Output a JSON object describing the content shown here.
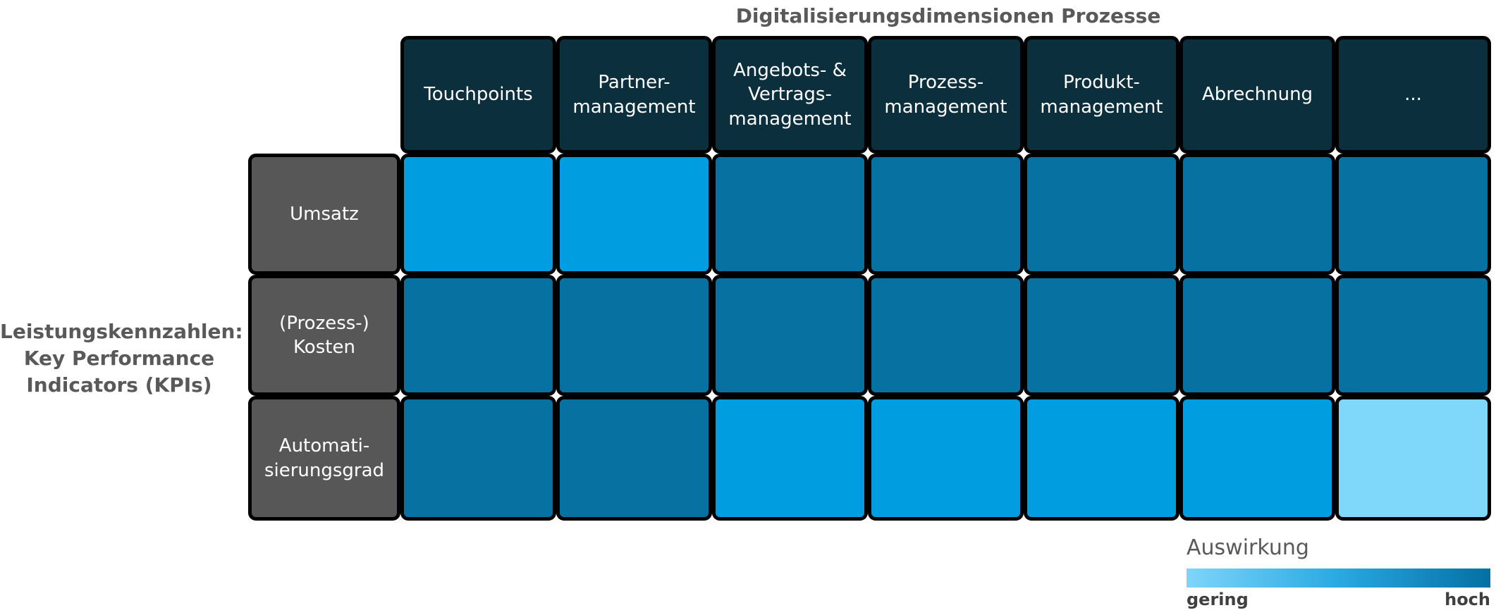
{
  "title": "Digitalisierungsdimensionen Prozesse",
  "y_axis_label": "Leistungskennzahlen:\nKey Performance\nIndicators (KPIs)",
  "legend": {
    "title": "Auswirkung",
    "min_label": "gering",
    "max_label": "hoch"
  },
  "colors": {
    "title_text": "#595959",
    "header_bg": "#0C2F3E",
    "row_header_bg": "#575757",
    "box_border": "#000000",
    "cell_text": "#FFFFFF",
    "legend_label_text": "#3F3F3F",
    "impact_scale": {
      "gering": "#7FD7F9",
      "mittel": "#009EE0",
      "hoch": "#0771A1"
    },
    "legend_gradient": [
      "#7ED5FA",
      "#29A9E2",
      "#0470A4"
    ]
  },
  "chart_data": {
    "type": "heatmap",
    "title": "Digitalisierungsdimensionen Prozesse",
    "ylabel": "Leistungskennzahlen: Key Performance Indicators (KPIs)",
    "x_categories": [
      "Touchpoints",
      "Partner-\nmanagement",
      "Angebots- &\nVertrags-\nmanagement",
      "Prozess-\nmanagement",
      "Produkt-\nmanagement",
      "Abrechnung",
      "..."
    ],
    "y_categories": [
      "Umsatz",
      "(Prozess-)\nKosten",
      "Automati-\nsierungsgrad"
    ],
    "values": [
      [
        "mittel",
        "mittel",
        "hoch",
        "hoch",
        "hoch",
        "hoch",
        "hoch"
      ],
      [
        "hoch",
        "hoch",
        "hoch",
        "hoch",
        "hoch",
        "hoch",
        "hoch"
      ],
      [
        "hoch",
        "hoch",
        "mittel",
        "mittel",
        "mittel",
        "mittel",
        "gering"
      ]
    ],
    "value_scale": {
      "gering": 1,
      "mittel": 2,
      "hoch": 3
    },
    "legend": {
      "title": "Auswirkung",
      "min_label": "gering",
      "max_label": "hoch",
      "position": "bottom-right"
    },
    "grid": false
  }
}
